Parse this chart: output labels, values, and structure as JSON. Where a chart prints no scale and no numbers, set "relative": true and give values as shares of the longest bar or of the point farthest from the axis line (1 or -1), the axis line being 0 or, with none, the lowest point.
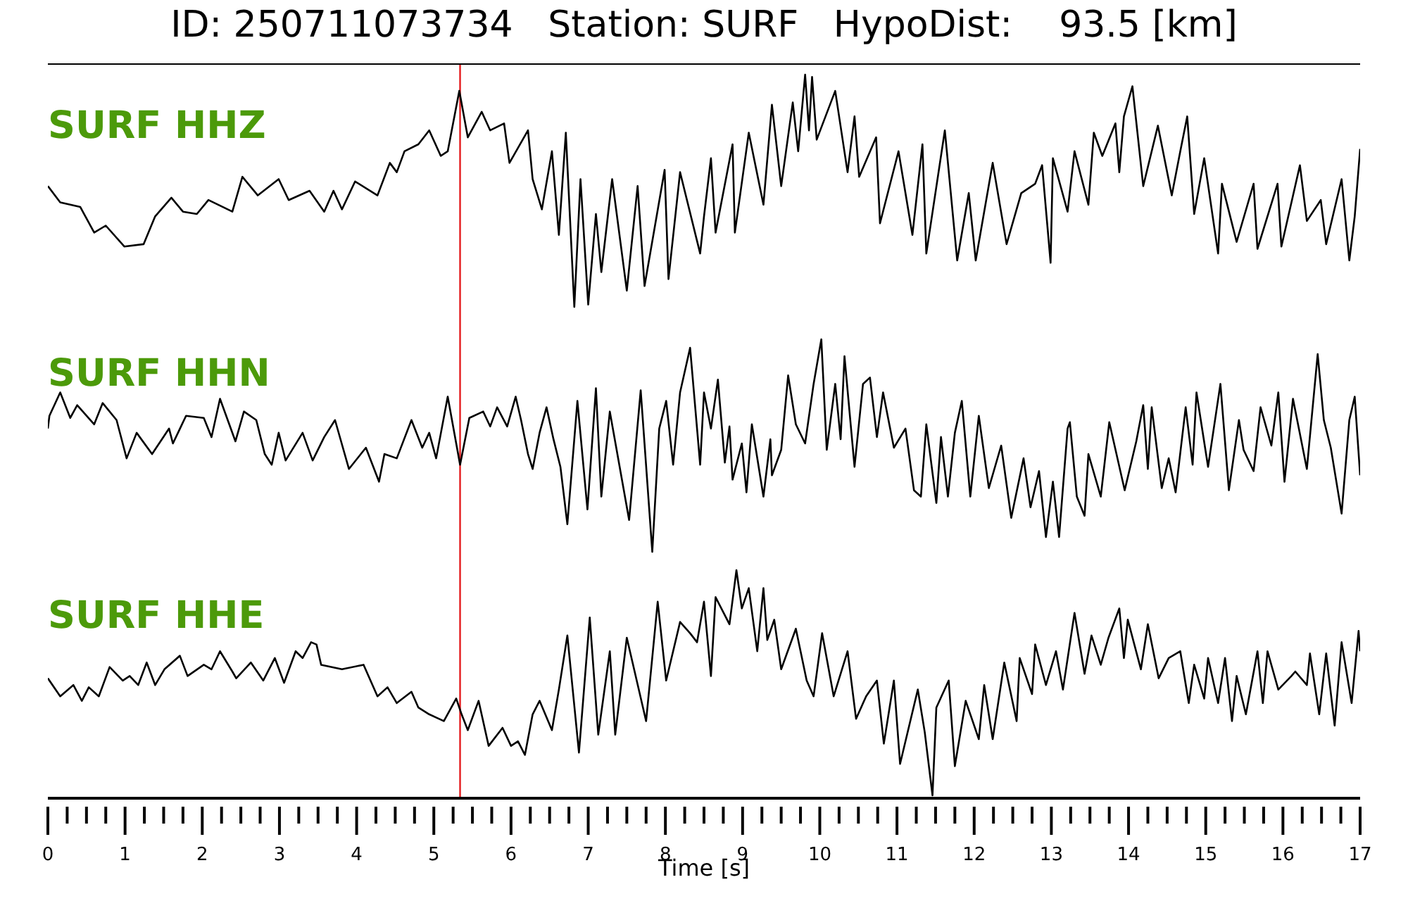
{
  "chart_data": [
    {
      "type": "line",
      "title": "ID: 250711073734   Station: SURF   HypoDist:    93.5 [km]",
      "annotations": [
        "SURF HHZ"
      ],
      "relative": true,
      "xlim": [
        0,
        17
      ],
      "tick_labels": false,
      "x": [
        0,
        0.16,
        0.42,
        0.6,
        0.75,
        0.99,
        1.24,
        1.39,
        1.6,
        1.75,
        1.93,
        2.08,
        2.39,
        2.52,
        2.72,
        2.99,
        3.12,
        3.39,
        3.58,
        3.7,
        3.81,
        3.98,
        4.27,
        4.43,
        4.52,
        4.62,
        4.8,
        4.94,
        5.09,
        5.18,
        5.33,
        5.44,
        5.62,
        5.73,
        5.91,
        5.98,
        6.22,
        6.28,
        6.4,
        6.53,
        6.62,
        6.71,
        6.82,
        6.9,
        7.0,
        7.1,
        7.17,
        7.31,
        7.5,
        7.64,
        7.73,
        7.99,
        8.04,
        8.19,
        8.45,
        8.5,
        8.59,
        8.65,
        8.87,
        8.9,
        9.08,
        9.27,
        9.38,
        9.5,
        9.65,
        9.72,
        9.81,
        9.86,
        9.9,
        9.96,
        10.2,
        10.36,
        10.45,
        10.51,
        10.73,
        10.78,
        11.02,
        11.2,
        11.33,
        11.38,
        11.62,
        11.78,
        11.93,
        12.02,
        12.24,
        12.42,
        12.61,
        12.79,
        12.88,
        12.99,
        13.02,
        13.21,
        13.3,
        13.48,
        13.55,
        13.66,
        13.83,
        13.88,
        13.94,
        14.05,
        14.19,
        14.38,
        14.56,
        14.67,
        14.76,
        14.85,
        14.98,
        15.16,
        15.21,
        15.4,
        15.62,
        15.67,
        15.93,
        15.98,
        16.22,
        16.31,
        16.49,
        16.56,
        16.76,
        16.86,
        16.93,
        17
      ],
      "series": [
        {
          "color": "#000000",
          "values": [
            0.52,
            0.45,
            0.43,
            0.32,
            0.35,
            0.26,
            0.27,
            0.39,
            0.47,
            0.41,
            0.4,
            0.46,
            0.41,
            0.56,
            0.48,
            0.55,
            0.46,
            0.5,
            0.41,
            0.5,
            0.42,
            0.54,
            0.48,
            0.62,
            0.58,
            0.67,
            0.7,
            0.76,
            0.65,
            0.67,
            0.93,
            0.73,
            0.84,
            0.76,
            0.79,
            0.62,
            0.76,
            0.55,
            0.42,
            0.67,
            0.31,
            0.75,
            0,
            0.55,
            0.01,
            0.4,
            0.15,
            0.55,
            0.07,
            0.52,
            0.09,
            0.59,
            0.12,
            0.58,
            0.23,
            0.39,
            0.64,
            0.32,
            0.7,
            0.32,
            0.75,
            0.44,
            0.87,
            0.52,
            0.88,
            0.67,
            1,
            0.76,
            0.99,
            0.72,
            0.93,
            0.58,
            0.82,
            0.56,
            0.73,
            0.36,
            0.67,
            0.31,
            0.7,
            0.23,
            0.76,
            0.2,
            0.49,
            0.2,
            0.62,
            0.27,
            0.49,
            0.53,
            0.61,
            0.19,
            0.64,
            0.41,
            0.67,
            0.44,
            0.75,
            0.65,
            0.79,
            0.58,
            0.82,
            0.95,
            0.52,
            0.78,
            0.48,
            0.67,
            0.82,
            0.4,
            0.64,
            0.23,
            0.53,
            0.28,
            0.53,
            0.25,
            0.53,
            0.26,
            0.61,
            0.37,
            0.46,
            0.27,
            0.55,
            0.2,
            0.39,
            0.68
          ]
        }
      ],
      "ref_lines": [
        {
          "axis": "x",
          "value": 5.34,
          "color": "#e41a1c"
        }
      ]
    },
    {
      "type": "line",
      "annotations": [
        "SURF HHN"
      ],
      "relative": true,
      "xlim": [
        0,
        17
      ],
      "tick_labels": false,
      "x": [
        0,
        0.02,
        0.16,
        0.29,
        0.38,
        0.6,
        0.71,
        0.89,
        1.02,
        1.15,
        1.35,
        1.57,
        1.62,
        1.79,
        2.02,
        2.12,
        2.23,
        2.43,
        2.54,
        2.7,
        2.81,
        2.9,
        2.99,
        3.08,
        3.3,
        3.43,
        3.58,
        3.72,
        3.9,
        4.12,
        4.29,
        4.36,
        4.52,
        4.71,
        4.85,
        4.94,
        5.03,
        5.18,
        5.34,
        5.46,
        5.64,
        5.73,
        5.82,
        5.95,
        6.06,
        6.13,
        6.22,
        6.28,
        6.37,
        6.46,
        6.55,
        6.64,
        6.73,
        6.86,
        6.99,
        7.1,
        7.17,
        7.28,
        7.53,
        7.68,
        7.83,
        7.92,
        8.01,
        8.1,
        8.19,
        8.32,
        8.45,
        8.5,
        8.59,
        8.68,
        8.77,
        8.83,
        8.87,
        8.99,
        9.05,
        9.12,
        9.27,
        9.36,
        9.38,
        9.5,
        9.59,
        9.69,
        9.81,
        9.92,
        10.02,
        10.09,
        10.2,
        10.27,
        10.32,
        10.45,
        10.56,
        10.65,
        10.74,
        10.82,
        10.96,
        11.11,
        11.22,
        11.31,
        11.38,
        11.51,
        11.57,
        11.66,
        11.75,
        11.84,
        11.95,
        12.06,
        12.19,
        12.35,
        12.48,
        12.64,
        12.73,
        12.84,
        12.93,
        13.02,
        13.1,
        13.21,
        13.24,
        13.33,
        13.43,
        13.48,
        13.64,
        13.75,
        13.95,
        14.1,
        14.19,
        14.25,
        14.3,
        14.43,
        14.52,
        14.61,
        14.74,
        14.83,
        14.88,
        15.03,
        15.19,
        15.3,
        15.43,
        15.49,
        15.62,
        15.71,
        15.85,
        15.94,
        16.02,
        16.13,
        16.31,
        16.45,
        16.53,
        16.62,
        16.76,
        16.86,
        16.93,
        17
      ],
      "series": [
        {
          "color": "#000000",
          "values": [
            0.58,
            0.64,
            0.75,
            0.63,
            0.69,
            0.6,
            0.7,
            0.62,
            0.44,
            0.56,
            0.46,
            0.58,
            0.51,
            0.64,
            0.63,
            0.54,
            0.72,
            0.52,
            0.66,
            0.62,
            0.46,
            0.41,
            0.56,
            0.43,
            0.56,
            0.43,
            0.54,
            0.62,
            0.39,
            0.49,
            0.33,
            0.46,
            0.44,
            0.62,
            0.49,
            0.56,
            0.44,
            0.73,
            0.41,
            0.63,
            0.66,
            0.59,
            0.68,
            0.59,
            0.73,
            0.62,
            0.46,
            0.39,
            0.56,
            0.68,
            0.53,
            0.4,
            0.13,
            0.71,
            0.2,
            0.77,
            0.26,
            0.66,
            0.15,
            0.76,
            0,
            0.58,
            0.71,
            0.41,
            0.75,
            0.96,
            0.41,
            0.75,
            0.58,
            0.81,
            0.42,
            0.59,
            0.34,
            0.51,
            0.28,
            0.6,
            0.26,
            0.53,
            0.36,
            0.48,
            0.83,
            0.6,
            0.51,
            0.79,
            1,
            0.48,
            0.79,
            0.53,
            0.92,
            0.4,
            0.79,
            0.82,
            0.54,
            0.75,
            0.49,
            0.58,
            0.29,
            0.26,
            0.6,
            0.23,
            0.54,
            0.26,
            0.56,
            0.71,
            0.26,
            0.64,
            0.3,
            0.5,
            0.16,
            0.44,
            0.21,
            0.38,
            0.07,
            0.33,
            0.07,
            0.58,
            0.61,
            0.26,
            0.17,
            0.46,
            0.26,
            0.61,
            0.29,
            0.52,
            0.69,
            0.39,
            0.68,
            0.3,
            0.44,
            0.28,
            0.68,
            0.41,
            0.75,
            0.4,
            0.79,
            0.29,
            0.62,
            0.48,
            0.38,
            0.68,
            0.5,
            0.75,
            0.33,
            0.72,
            0.39,
            0.93,
            0.62,
            0.49,
            0.18,
            0.62,
            0.73,
            0.36
          ]
        }
      ],
      "ref_lines": [
        {
          "axis": "x",
          "value": 5.34,
          "color": "#e41a1c"
        }
      ]
    },
    {
      "type": "line",
      "annotations": [
        "SURF HHE"
      ],
      "relative": true,
      "xlabel": "Time [s]",
      "xlim": [
        0,
        17
      ],
      "xticks": [
        0,
        {
          "value": 0.25,
          "label": null
        },
        {
          "value": 0.5,
          "label": null
        },
        {
          "value": 0.75,
          "label": null
        },
        1,
        {
          "value": 1.25,
          "label": null
        },
        {
          "value": 1.5,
          "label": null
        },
        {
          "value": 1.75,
          "label": null
        },
        2,
        {
          "value": 2.25,
          "label": null
        },
        {
          "value": 2.5,
          "label": null
        },
        {
          "value": 2.75,
          "label": null
        },
        3,
        {
          "value": 3.25,
          "label": null
        },
        {
          "value": 3.5,
          "label": null
        },
        {
          "value": 3.75,
          "label": null
        },
        4,
        {
          "value": 4.25,
          "label": null
        },
        {
          "value": 4.5,
          "label": null
        },
        {
          "value": 4.75,
          "label": null
        },
        5,
        {
          "value": 5.25,
          "label": null
        },
        {
          "value": 5.5,
          "label": null
        },
        {
          "value": 5.75,
          "label": null
        },
        6,
        {
          "value": 6.25,
          "label": null
        },
        {
          "value": 6.5,
          "label": null
        },
        {
          "value": 6.75,
          "label": null
        },
        7,
        {
          "value": 7.25,
          "label": null
        },
        {
          "value": 7.5,
          "label": null
        },
        {
          "value": 7.75,
          "label": null
        },
        8,
        {
          "value": 8.25,
          "label": null
        },
        {
          "value": 8.5,
          "label": null
        },
        {
          "value": 8.75,
          "label": null
        },
        9,
        {
          "value": 9.25,
          "label": null
        },
        {
          "value": 9.5,
          "label": null
        },
        {
          "value": 9.75,
          "label": null
        },
        10,
        {
          "value": 10.25,
          "label": null
        },
        {
          "value": 10.5,
          "label": null
        },
        {
          "value": 10.75,
          "label": null
        },
        11,
        {
          "value": 11.25,
          "label": null
        },
        {
          "value": 11.5,
          "label": null
        },
        {
          "value": 11.75,
          "label": null
        },
        12,
        {
          "value": 12.25,
          "label": null
        },
        {
          "value": 12.5,
          "label": null
        },
        {
          "value": 12.75,
          "label": null
        },
        13,
        {
          "value": 13.25,
          "label": null
        },
        {
          "value": 13.5,
          "label": null
        },
        {
          "value": 13.75,
          "label": null
        },
        14,
        {
          "value": 14.25,
          "label": null
        },
        {
          "value": 14.5,
          "label": null
        },
        {
          "value": 14.75,
          "label": null
        },
        15,
        {
          "value": 15.25,
          "label": null
        },
        {
          "value": 15.5,
          "label": null
        },
        {
          "value": 15.75,
          "label": null
        },
        16,
        {
          "value": 16.25,
          "label": null
        },
        {
          "value": 16.5,
          "label": null
        },
        {
          "value": 16.75,
          "label": null
        },
        17
      ],
      "x": [
        0,
        0.16,
        0.33,
        0.44,
        0.53,
        0.66,
        0.8,
        0.97,
        1.06,
        1.17,
        1.28,
        1.39,
        1.51,
        1.71,
        1.81,
        2.02,
        2.12,
        2.23,
        2.39,
        2.44,
        2.63,
        2.79,
        2.94,
        3.06,
        3.21,
        3.3,
        3.41,
        3.48,
        3.54,
        3.81,
        4.09,
        4.27,
        4.4,
        4.52,
        4.71,
        4.8,
        4.94,
        5.13,
        5.29,
        5.36,
        5.44,
        5.58,
        5.71,
        5.89,
        6.0,
        6.09,
        6.18,
        6.28,
        6.37,
        6.53,
        6.62,
        6.73,
        6.88,
        7.02,
        7.13,
        7.28,
        7.35,
        7.5,
        7.75,
        7.9,
        8.01,
        8.19,
        8.32,
        8.41,
        8.5,
        8.59,
        8.65,
        8.83,
        8.92,
        8.99,
        9.08,
        9.19,
        9.27,
        9.32,
        9.41,
        9.5,
        9.69,
        9.83,
        9.92,
        10.03,
        10.18,
        10.36,
        10.47,
        10.6,
        10.74,
        10.83,
        10.96,
        11.04,
        11.27,
        11.36,
        11.46,
        11.51,
        11.67,
        11.75,
        11.89,
        12.06,
        12.13,
        12.24,
        12.39,
        12.55,
        12.59,
        12.75,
        12.79,
        12.93,
        13.06,
        13.15,
        13.3,
        13.43,
        13.52,
        13.64,
        13.74,
        13.88,
        13.94,
        13.99,
        14.16,
        14.25,
        14.39,
        14.52,
        14.67,
        14.78,
        14.85,
        14.98,
        15.03,
        15.16,
        15.25,
        15.34,
        15.4,
        15.52,
        15.67,
        15.74,
        15.8,
        15.94,
        16.11,
        16.16,
        16.31,
        16.35,
        16.47,
        16.56,
        16.67,
        16.76,
        16.89,
        16.98,
        17
      ],
      "series": [
        {
          "color": "#000000",
          "values": [
            0.52,
            0.44,
            0.49,
            0.42,
            0.48,
            0.44,
            0.57,
            0.51,
            0.53,
            0.49,
            0.59,
            0.49,
            0.56,
            0.62,
            0.53,
            0.58,
            0.56,
            0.64,
            0.55,
            0.52,
            0.59,
            0.51,
            0.61,
            0.5,
            0.64,
            0.61,
            0.68,
            0.67,
            0.58,
            0.56,
            0.58,
            0.44,
            0.48,
            0.41,
            0.46,
            0.39,
            0.36,
            0.33,
            0.43,
            0.36,
            0.29,
            0.42,
            0.22,
            0.3,
            0.22,
            0.24,
            0.18,
            0.36,
            0.42,
            0.29,
            0.47,
            0.71,
            0.19,
            0.79,
            0.27,
            0.64,
            0.27,
            0.7,
            0.33,
            0.86,
            0.51,
            0.77,
            0.72,
            0.68,
            0.86,
            0.53,
            0.88,
            0.76,
            1,
            0.83,
            0.92,
            0.64,
            0.92,
            0.69,
            0.78,
            0.56,
            0.74,
            0.51,
            0.44,
            0.72,
            0.44,
            0.64,
            0.34,
            0.44,
            0.51,
            0.23,
            0.51,
            0.14,
            0.47,
            0.28,
            0,
            0.39,
            0.51,
            0.13,
            0.42,
            0.25,
            0.49,
            0.25,
            0.59,
            0.33,
            0.61,
            0.45,
            0.67,
            0.49,
            0.64,
            0.47,
            0.81,
            0.54,
            0.71,
            0.58,
            0.7,
            0.83,
            0.61,
            0.78,
            0.56,
            0.76,
            0.52,
            0.61,
            0.64,
            0.41,
            0.58,
            0.43,
            0.61,
            0.41,
            0.61,
            0.33,
            0.53,
            0.36,
            0.64,
            0.41,
            0.64,
            0.47,
            0.53,
            0.55,
            0.49,
            0.63,
            0.36,
            0.63,
            0.31,
            0.68,
            0.41,
            0.73,
            0.64
          ]
        }
      ],
      "ref_lines": [
        {
          "axis": "x",
          "value": 5.34,
          "color": "#e41a1c"
        }
      ]
    }
  ]
}
